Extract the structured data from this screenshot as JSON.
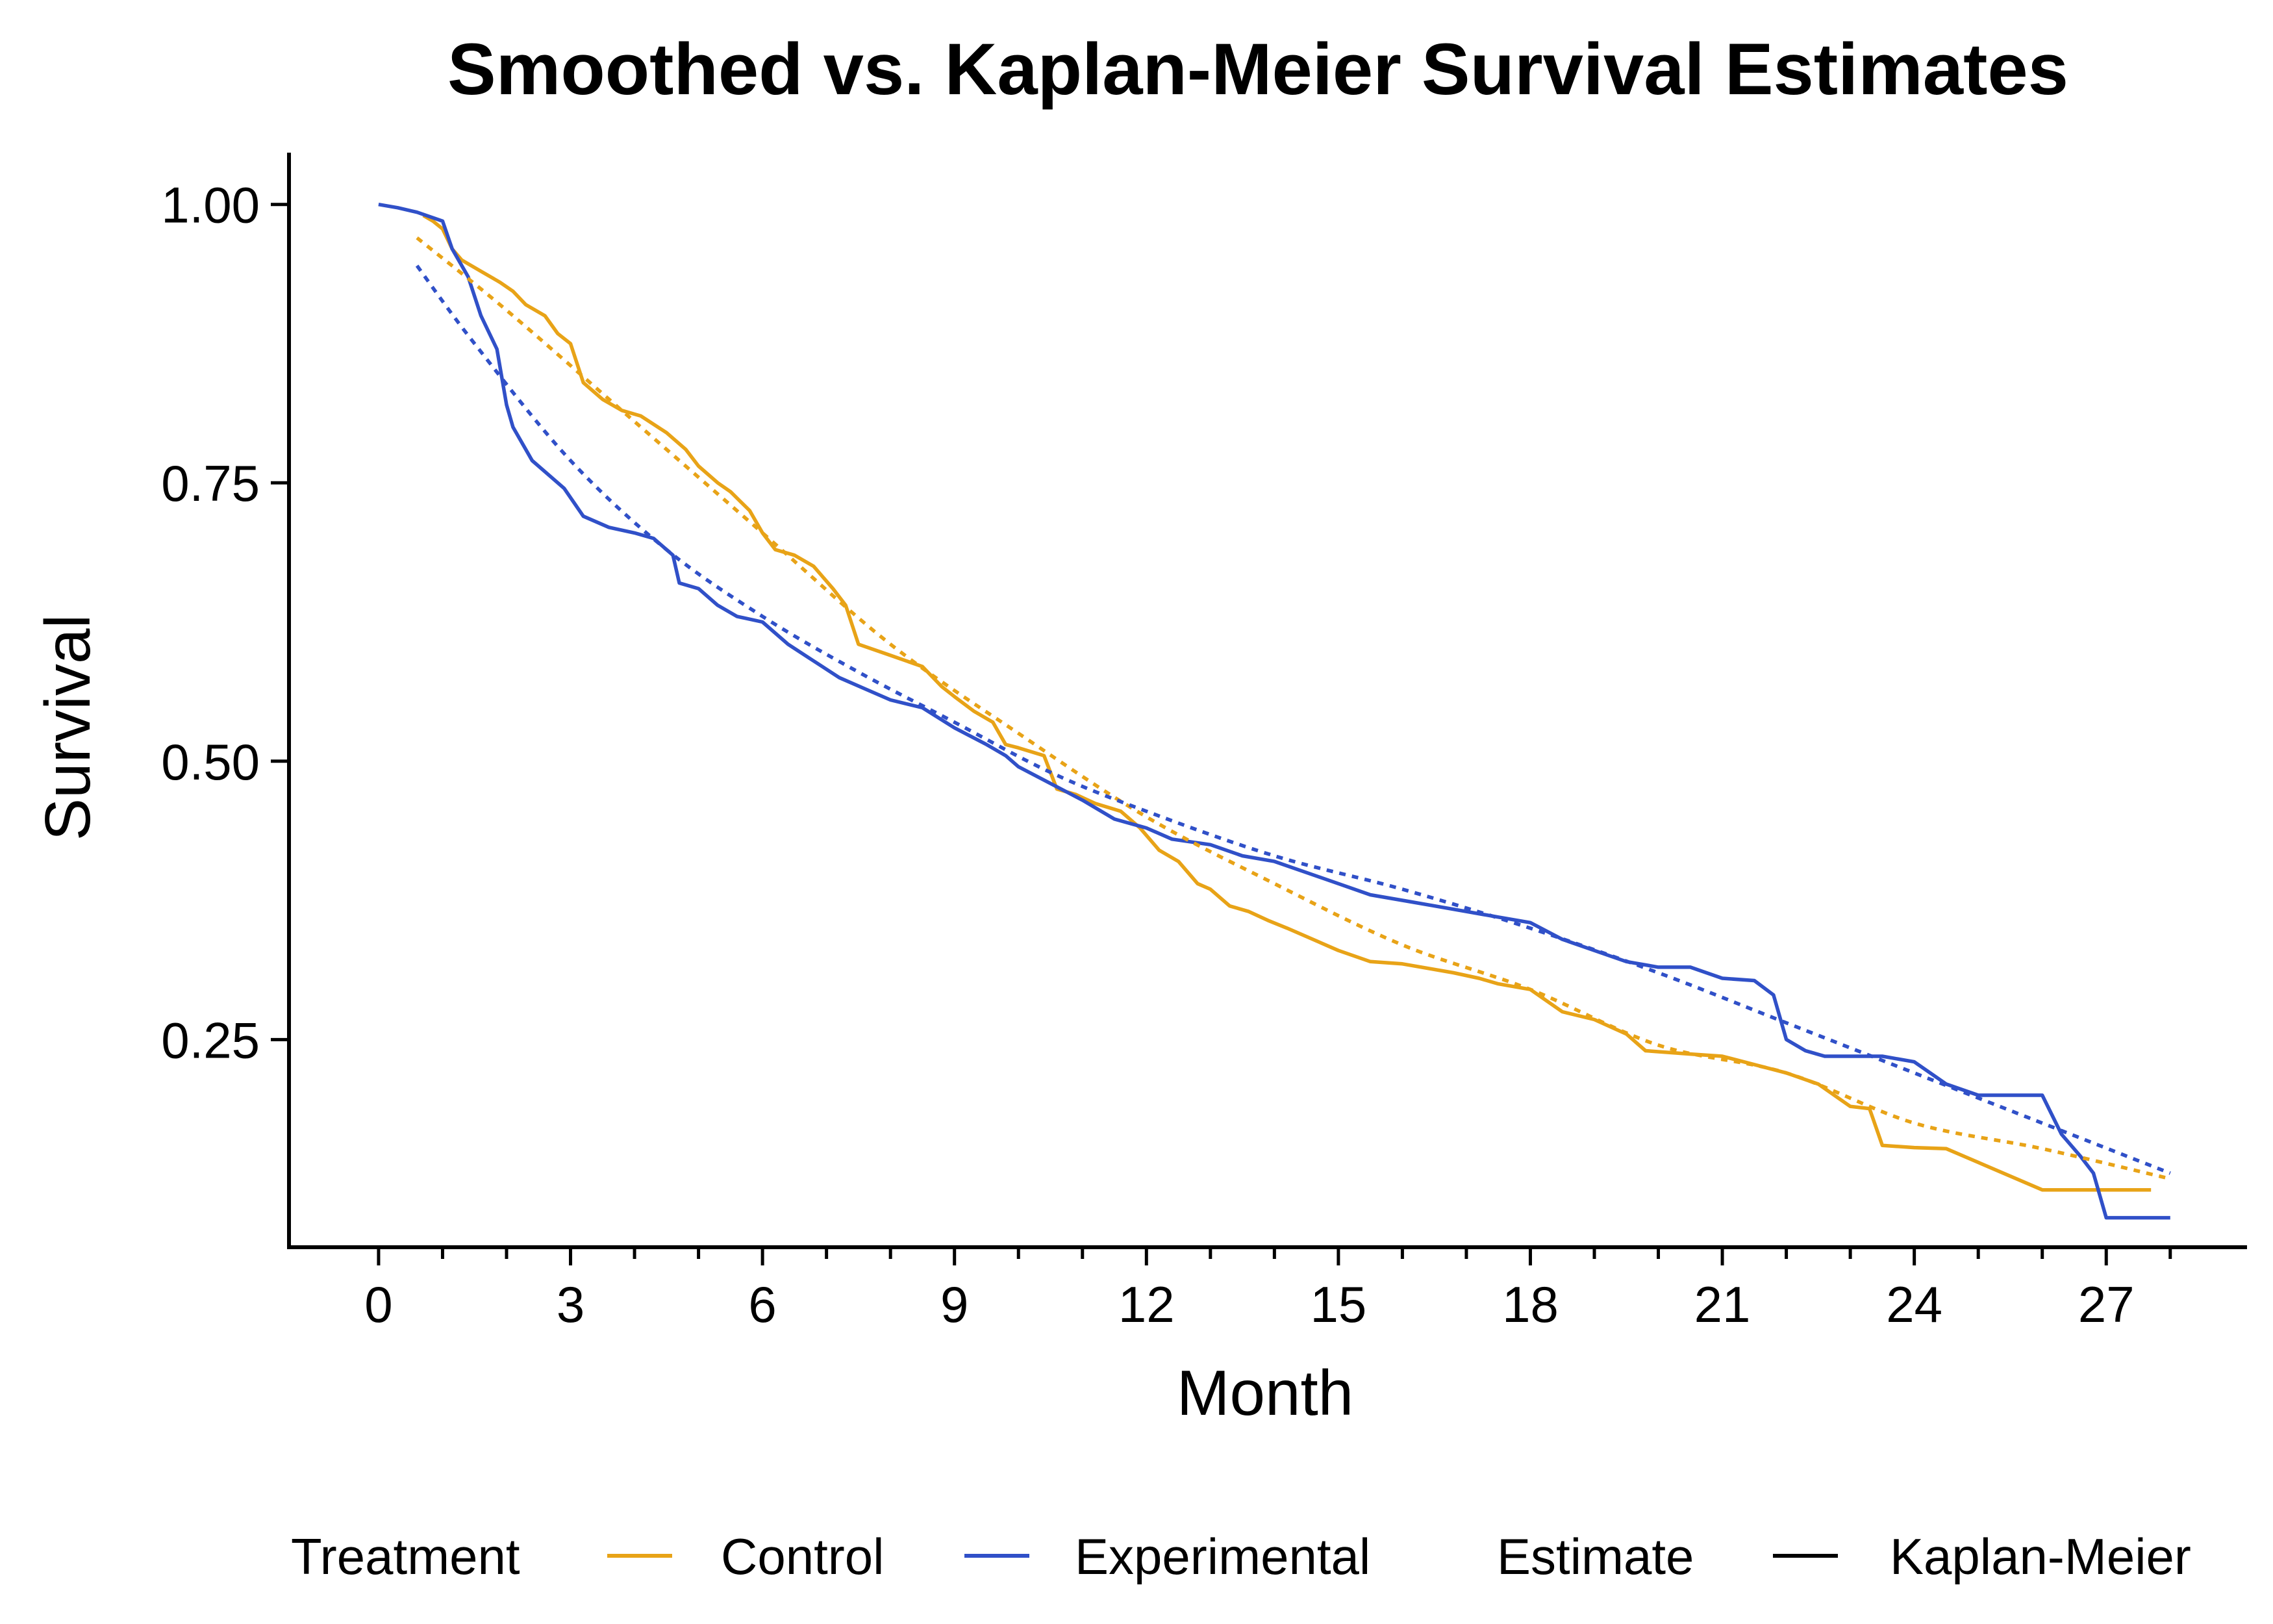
{
  "chart_data": {
    "type": "line",
    "title": "Smoothed vs. Kaplan-Meier Survival Estimates",
    "xlabel": "Month",
    "ylabel": "Survival",
    "xlim": [
      -1.4,
      29.2
    ],
    "ylim": [
      0.0635,
      1.0465
    ],
    "x_ticks": [
      0,
      3,
      6,
      9,
      12,
      15,
      18,
      21,
      24,
      27
    ],
    "x_tick_labels": [
      "0",
      "3",
      "6",
      "9",
      "12",
      "15",
      "18",
      "21",
      "24",
      "27"
    ],
    "x_minor_ticks": [
      1,
      2,
      4,
      5,
      7,
      8,
      10,
      11,
      13,
      14,
      16,
      17,
      19,
      20,
      22,
      23,
      25,
      26,
      28
    ],
    "y_ticks": [
      0.25,
      0.5,
      0.75,
      1.0
    ],
    "y_tick_labels": [
      "0.25",
      "0.50",
      "0.75",
      "1.00"
    ],
    "grid": false,
    "legend": {
      "position": "bottom",
      "groups": [
        {
          "title": "Treatment",
          "items": [
            {
              "label": "Control",
              "color": "#E8A317"
            },
            {
              "label": "Experimental",
              "color": "#3050C8"
            }
          ]
        },
        {
          "title": "Estimate",
          "items": [
            {
              "label": "Kaplan-Meier",
              "color": "#000000"
            }
          ]
        }
      ]
    },
    "series": [
      {
        "name": "Control",
        "estimate": "Kaplan-Meier",
        "color": "#E8A317",
        "x": [
          0.7,
          0.85,
          1.0,
          1.15,
          1.3,
          1.6,
          1.9,
          2.1,
          2.3,
          2.6,
          2.8,
          3.0,
          3.2,
          3.5,
          3.8,
          4.1,
          4.5,
          4.8,
          5.0,
          5.3,
          5.5,
          5.8,
          6.0,
          6.2,
          6.5,
          6.8,
          7.1,
          7.3,
          7.5,
          8.0,
          8.5,
          8.8,
          9.0,
          9.3,
          9.6,
          9.8,
          10.0,
          10.4,
          10.6,
          10.9,
          11.2,
          11.6,
          11.9,
          12.2,
          12.5,
          12.8,
          13.0,
          13.3,
          13.6,
          13.9,
          14.2,
          14.6,
          15.0,
          15.5,
          16.0,
          16.8,
          17.2,
          17.5,
          18.0,
          18.5,
          19.0,
          19.5,
          19.8,
          20.5,
          21.0,
          22.0,
          22.5,
          23.0,
          23.3,
          23.5,
          24.0,
          24.5,
          26.0,
          26.5,
          27.7
        ],
        "y": [
          0.99,
          0.985,
          0.978,
          0.96,
          0.95,
          0.94,
          0.93,
          0.922,
          0.91,
          0.9,
          0.884,
          0.875,
          0.84,
          0.825,
          0.815,
          0.81,
          0.795,
          0.78,
          0.765,
          0.75,
          0.742,
          0.725,
          0.705,
          0.69,
          0.685,
          0.675,
          0.655,
          0.64,
          0.605,
          0.595,
          0.585,
          0.567,
          0.558,
          0.545,
          0.535,
          0.515,
          0.512,
          0.505,
          0.475,
          0.47,
          0.462,
          0.455,
          0.44,
          0.42,
          0.41,
          0.39,
          0.385,
          0.37,
          0.365,
          0.357,
          0.35,
          0.34,
          0.33,
          0.32,
          0.318,
          0.31,
          0.305,
          0.3,
          0.295,
          0.275,
          0.268,
          0.255,
          0.24,
          0.237,
          0.235,
          0.22,
          0.21,
          0.19,
          0.188,
          0.155,
          0.153,
          0.152,
          0.115,
          0.115,
          0.115
        ]
      },
      {
        "name": "Experimental",
        "estimate": "Kaplan-Meier",
        "color": "#3050C8",
        "x": [
          0.0,
          0.3,
          0.6,
          1.0,
          1.15,
          1.4,
          1.6,
          1.85,
          2.0,
          2.1,
          2.4,
          2.7,
          2.9,
          3.2,
          3.6,
          4.0,
          4.3,
          4.6,
          4.7,
          5.0,
          5.3,
          5.6,
          6.0,
          6.4,
          6.8,
          7.2,
          7.6,
          8.0,
          8.5,
          9.0,
          9.5,
          9.8,
          10.0,
          10.5,
          11.0,
          11.5,
          12.0,
          12.4,
          13.0,
          13.5,
          14.0,
          14.5,
          15.0,
          15.5,
          16.0,
          16.5,
          17.0,
          17.5,
          18.0,
          18.5,
          19.0,
          19.5,
          20.0,
          20.5,
          21.0,
          21.5,
          21.8,
          22.0,
          22.3,
          22.6,
          23.0,
          23.5,
          24.0,
          24.5,
          25.0,
          25.5,
          26.0,
          26.3,
          26.6,
          26.8,
          27.0,
          27.5,
          28.0
        ],
        "y": [
          1.0,
          0.997,
          0.993,
          0.985,
          0.96,
          0.935,
          0.9,
          0.87,
          0.82,
          0.8,
          0.77,
          0.755,
          0.745,
          0.72,
          0.71,
          0.705,
          0.7,
          0.685,
          0.66,
          0.655,
          0.64,
          0.63,
          0.625,
          0.605,
          0.59,
          0.575,
          0.565,
          0.555,
          0.548,
          0.53,
          0.515,
          0.505,
          0.495,
          0.48,
          0.465,
          0.448,
          0.44,
          0.43,
          0.425,
          0.415,
          0.41,
          0.4,
          0.39,
          0.38,
          0.375,
          0.37,
          0.365,
          0.36,
          0.355,
          0.34,
          0.33,
          0.32,
          0.315,
          0.315,
          0.305,
          0.303,
          0.29,
          0.25,
          0.24,
          0.235,
          0.235,
          0.235,
          0.23,
          0.21,
          0.2,
          0.2,
          0.2,
          0.165,
          0.145,
          0.13,
          0.09,
          0.09,
          0.09
        ]
      },
      {
        "name": "Control",
        "estimate": "Smoothed",
        "color": "#E8A317",
        "x": [
          0.6,
          2.0,
          4.0,
          6.0,
          8.0,
          10.0,
          12.0,
          14.0,
          16.0,
          18.0,
          20.0,
          22.0,
          24.0,
          26.0,
          28.0
        ],
        "y": [
          0.97,
          0.905,
          0.805,
          0.705,
          0.605,
          0.525,
          0.45,
          0.39,
          0.335,
          0.295,
          0.245,
          0.22,
          0.175,
          0.152,
          0.125
        ]
      },
      {
        "name": "Experimental",
        "estimate": "Smoothed",
        "color": "#3050C8",
        "x": [
          0.6,
          1.5,
          3.0,
          4.5,
          6.0,
          7.5,
          9.0,
          10.5,
          12.0,
          14.0,
          16.0,
          18.0,
          20.0,
          22.0,
          24.0,
          26.0,
          28.0
        ],
        "y": [
          0.945,
          0.875,
          0.77,
          0.69,
          0.63,
          0.58,
          0.535,
          0.49,
          0.455,
          0.415,
          0.385,
          0.35,
          0.31,
          0.265,
          0.22,
          0.175,
          0.13
        ]
      }
    ]
  }
}
